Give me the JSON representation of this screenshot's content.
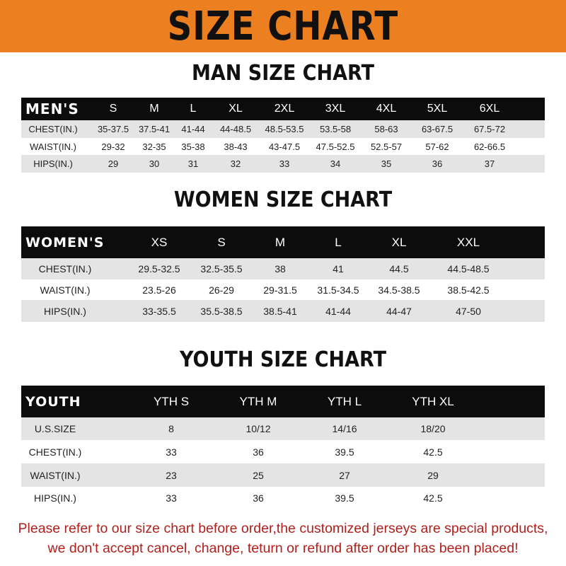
{
  "banner_title": "SIZE CHART",
  "men": {
    "title": "MAN SIZE CHART",
    "headers": [
      "MEN'S",
      "S",
      "M",
      "L",
      "XL",
      "2XL",
      "3XL",
      "4XL",
      "5XL",
      "6XL"
    ],
    "rows": [
      [
        "CHEST(IN.)",
        "35-37.5",
        "37.5-41",
        "41-44",
        "44-48.5",
        "48.5-53.5",
        "53.5-58",
        "58-63",
        "63-67.5",
        "67.5-72"
      ],
      [
        "WAIST(IN.)",
        "29-32",
        "32-35",
        "35-38",
        "38-43",
        "43-47.5",
        "47.5-52.5",
        "52.5-57",
        "57-62",
        "62-66.5"
      ],
      [
        "HIPS(IN.)",
        "29",
        "30",
        "31",
        "32",
        "33",
        "34",
        "35",
        "36",
        "37"
      ]
    ]
  },
  "women": {
    "title": "WOMEN SIZE CHART",
    "headers": [
      "WOMEN'S",
      "XS",
      "S",
      "M",
      "L",
      "XL",
      "XXL"
    ],
    "rows": [
      [
        "CHEST(IN.)",
        "29.5-32.5",
        "32.5-35.5",
        "38",
        "41",
        "44.5",
        "44.5-48.5"
      ],
      [
        "WAIST(IN.)",
        "23.5-26",
        "26-29",
        "29-31.5",
        "31.5-34.5",
        "34.5-38.5",
        "38.5-42.5"
      ],
      [
        "HIPS(IN.)",
        "33-35.5",
        "35.5-38.5",
        "38.5-41",
        "41-44",
        "44-47",
        "47-50"
      ]
    ]
  },
  "youth": {
    "title": "YOUTH SIZE CHART",
    "headers": [
      "YOUTH",
      "YTH S",
      "YTH M",
      "YTH L",
      "YTH XL"
    ],
    "rows": [
      [
        "U.S.SIZE",
        "8",
        "10/12",
        "14/16",
        "18/20"
      ],
      [
        "CHEST(IN.)",
        "33",
        "36",
        "39.5",
        "42.5"
      ],
      [
        "WAIST(IN.)",
        "23",
        "25",
        "27",
        "29"
      ],
      [
        "HIPS(IN.)",
        "33",
        "36",
        "39.5",
        "42.5"
      ]
    ]
  },
  "notice": {
    "line1": "Please refer to our size chart before order,the customized jerseys are special products,",
    "line2": "we don't accept cancel, change, teturn or refund after order has been placed!"
  },
  "colors": {
    "banner": "#ec7f1f",
    "header_row": "#0c0c0c",
    "stripe": "#e4e4e4",
    "notice": "#b0201c"
  }
}
